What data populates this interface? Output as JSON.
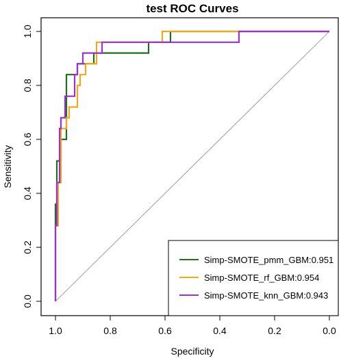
{
  "chart_data": {
    "type": "line",
    "title": "test ROC Curves",
    "xlabel": "Specificity",
    "ylabel": "Sensitivity",
    "xlim": [
      1.0,
      0.0
    ],
    "ylim": [
      0.0,
      1.0
    ],
    "x_reversed": true,
    "x_ticks": [
      "1.0",
      "0.8",
      "0.6",
      "0.4",
      "0.2",
      "0.0"
    ],
    "y_ticks": [
      "0.0",
      "0.2",
      "0.4",
      "0.6",
      "0.8",
      "1.0"
    ],
    "x_tick_values": [
      1.0,
      0.8,
      0.6,
      0.4,
      0.2,
      0.0
    ],
    "y_tick_values": [
      0.0,
      0.2,
      0.4,
      0.6,
      0.8,
      1.0
    ],
    "grid": false,
    "legend_position": "bottom-right",
    "reference_line": {
      "from": [
        1.0,
        0.0
      ],
      "to": [
        0.0,
        1.0
      ],
      "color": "#aaaaaa"
    },
    "series": [
      {
        "name": "Simp-SMOTE_pmm_GBM:0.951",
        "color": "#1f6e1f",
        "x": [
          1.0,
          1.0,
          0.995,
          0.995,
          0.98,
          0.98,
          0.96,
          0.96,
          0.96,
          0.92,
          0.92,
          0.9,
          0.9,
          0.875,
          0.875,
          0.86,
          0.86,
          0.66,
          0.66,
          0.58,
          0.58,
          0.0
        ],
        "y": [
          0.0,
          0.36,
          0.36,
          0.52,
          0.52,
          0.6,
          0.6,
          0.84,
          0.84,
          0.84,
          0.88,
          0.88,
          0.88,
          0.88,
          0.88,
          0.88,
          0.92,
          0.92,
          0.96,
          0.96,
          1.0,
          1.0
        ]
      },
      {
        "name": "Simp-SMOTE_rf_GBM:0.954",
        "color": "#f0a71c",
        "x": [
          1.0,
          1.0,
          0.99,
          0.99,
          0.98,
          0.98,
          0.96,
          0.96,
          0.95,
          0.95,
          0.92,
          0.92,
          0.91,
          0.91,
          0.89,
          0.89,
          0.85,
          0.85,
          0.61,
          0.61,
          0.0
        ],
        "y": [
          0.0,
          0.28,
          0.28,
          0.44,
          0.44,
          0.64,
          0.64,
          0.68,
          0.68,
          0.72,
          0.72,
          0.8,
          0.8,
          0.84,
          0.84,
          0.88,
          0.88,
          0.96,
          0.96,
          1.0,
          1.0
        ]
      },
      {
        "name": "Simp-SMOTE_knn_GBM:0.943",
        "color": "#9b30d3",
        "x": [
          1.0,
          1.0,
          0.995,
          0.995,
          0.985,
          0.985,
          0.98,
          0.98,
          0.965,
          0.965,
          0.93,
          0.93,
          0.92,
          0.92,
          0.9,
          0.9,
          0.83,
          0.83,
          0.33,
          0.33,
          0.0
        ],
        "y": [
          0.0,
          0.28,
          0.28,
          0.44,
          0.44,
          0.64,
          0.64,
          0.68,
          0.68,
          0.76,
          0.76,
          0.84,
          0.84,
          0.88,
          0.88,
          0.92,
          0.92,
          0.96,
          0.96,
          1.0,
          1.0
        ]
      }
    ]
  }
}
